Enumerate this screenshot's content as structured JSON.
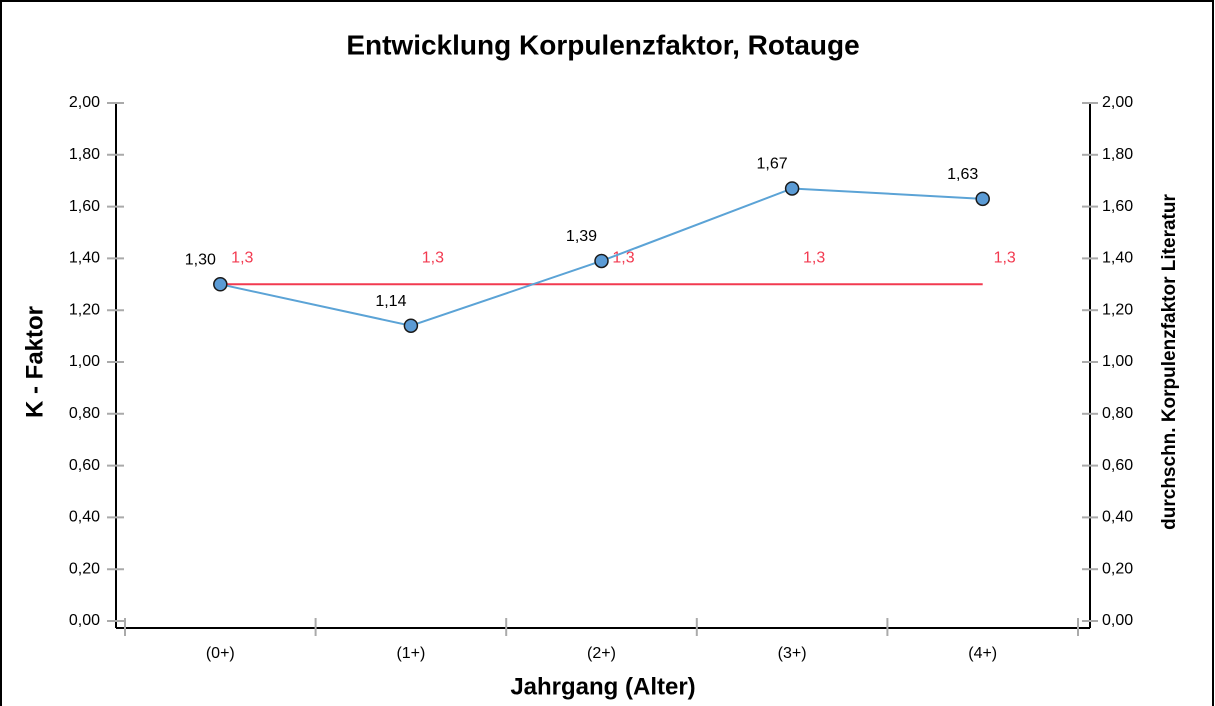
{
  "chart_data": {
    "type": "line",
    "title": "Entwicklung Korpulenzfaktor, Rotauge",
    "x_label": "Jahrgang (Alter)",
    "y_label": "K - Faktor",
    "y2_label": "durchschn. Korpulenzfaktor Literatur",
    "categories": [
      "(0+)",
      "(1+)",
      "(2+)",
      "(3+)",
      "(4+)"
    ],
    "series": [
      {
        "color": "#5ba3d6",
        "values": [
          1.3,
          1.14,
          1.39,
          1.67,
          1.63
        ],
        "value_labels": [
          "1,30",
          "1,14",
          "1,39",
          "1,67",
          "1,63"
        ]
      },
      {
        "color": "#f23a50",
        "axis": "y2",
        "values": [
          1.3,
          1.3,
          1.3,
          1.3,
          1.3
        ],
        "value_labels": [
          "1,3",
          "1,3",
          "1,3",
          "1,3",
          "1,3"
        ]
      }
    ],
    "ylim": [
      0,
      2
    ],
    "yticks": [
      {
        "value": 0,
        "label": "0,00"
      },
      {
        "value": 0.2,
        "label": "0,20"
      },
      {
        "value": 0.4,
        "label": "0,40"
      },
      {
        "value": 0.6,
        "label": "0,60"
      },
      {
        "value": 0.8,
        "label": "0,80"
      },
      {
        "value": 1,
        "label": "1,00"
      },
      {
        "value": 1.2,
        "label": "1,20"
      },
      {
        "value": 1.4,
        "label": "1,40"
      },
      {
        "value": 1.6,
        "label": "1,60"
      },
      {
        "value": 1.8,
        "label": "1,80"
      },
      {
        "value": 2,
        "label": "2,00"
      }
    ],
    "y2lim": [
      0,
      2
    ],
    "y2ticks": [
      {
        "value": 0,
        "label": "0,00"
      },
      {
        "value": 0.2,
        "label": "0,20"
      },
      {
        "value": 0.4,
        "label": "0,40"
      },
      {
        "value": 0.6,
        "label": "0,60"
      },
      {
        "value": 0.8,
        "label": "0,80"
      },
      {
        "value": 1,
        "label": "1,00"
      },
      {
        "value": 1.2,
        "label": "1,20"
      },
      {
        "value": 1.4,
        "label": "1,40"
      },
      {
        "value": 1.6,
        "label": "1,60"
      },
      {
        "value": 1.8,
        "label": "1,80"
      },
      {
        "value": 2,
        "label": "2,00"
      }
    ]
  }
}
